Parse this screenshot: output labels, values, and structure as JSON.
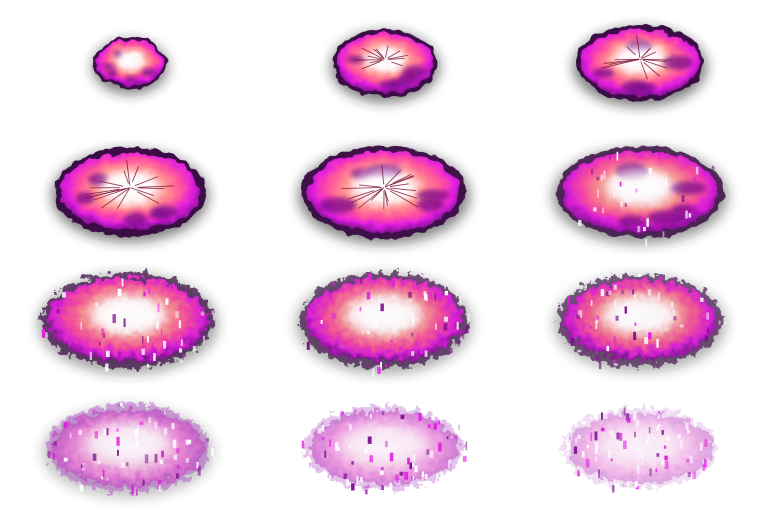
{
  "sprite_sheet": {
    "rows": 4,
    "columns": 3,
    "frame_count": 12,
    "palette": {
      "outer_dark": "#3a0a45",
      "rim_purple": "#7a0f8c",
      "magenta": "#e21ee0",
      "hot_pink": "#ff4fa0",
      "salmon": "#ff8f8f",
      "core": "#ffffff",
      "shadow": "#1a1a1a"
    },
    "frames": [
      {
        "index": 1,
        "intensity": 1.0,
        "dissipation": 0.0
      },
      {
        "index": 2,
        "intensity": 1.0,
        "dissipation": 0.0
      },
      {
        "index": 3,
        "intensity": 1.0,
        "dissipation": 0.0
      },
      {
        "index": 4,
        "intensity": 1.0,
        "dissipation": 0.0
      },
      {
        "index": 5,
        "intensity": 1.0,
        "dissipation": 0.05
      },
      {
        "index": 6,
        "intensity": 0.95,
        "dissipation": 0.2
      },
      {
        "index": 7,
        "intensity": 0.92,
        "dissipation": 0.35
      },
      {
        "index": 8,
        "intensity": 0.9,
        "dissipation": 0.4
      },
      {
        "index": 9,
        "intensity": 0.88,
        "dissipation": 0.45
      },
      {
        "index": 10,
        "intensity": 0.75,
        "dissipation": 0.6
      },
      {
        "index": 11,
        "intensity": 0.6,
        "dissipation": 0.72
      },
      {
        "index": 12,
        "intensity": 0.4,
        "dissipation": 0.88
      }
    ]
  }
}
